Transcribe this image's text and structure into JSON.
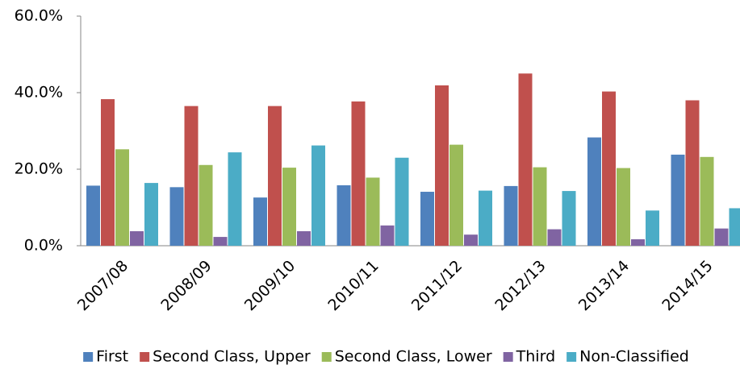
{
  "chart_data": {
    "type": "bar",
    "categories": [
      "2007/08",
      "2008/09",
      "2009/10",
      "2010/11",
      "2011/12",
      "2012/13",
      "2013/14",
      "2014/15"
    ],
    "series": [
      {
        "name": "First",
        "color": "#4f81bd",
        "values": [
          15.7,
          15.3,
          12.6,
          15.8,
          14.1,
          15.6,
          28.3,
          23.8
        ]
      },
      {
        "name": "Second Class, Upper",
        "color": "#c0504d",
        "values": [
          38.3,
          36.5,
          36.5,
          37.7,
          41.9,
          45.0,
          40.3,
          38.0
        ]
      },
      {
        "name": "Second Class, Lower",
        "color": "#9bbb59",
        "values": [
          25.2,
          21.1,
          20.4,
          17.8,
          26.4,
          20.5,
          20.3,
          23.2
        ]
      },
      {
        "name": "Third",
        "color": "#8064a2",
        "values": [
          3.8,
          2.3,
          3.8,
          5.3,
          2.9,
          4.3,
          1.7,
          4.5
        ]
      },
      {
        "name": "Non-Classified",
        "color": "#4bacc6",
        "values": [
          16.4,
          24.4,
          26.2,
          23.0,
          14.4,
          14.3,
          9.2,
          9.8
        ]
      }
    ],
    "ylim": [
      0,
      60
    ],
    "yticks": [
      {
        "value": 0,
        "label": "0.0%"
      },
      {
        "value": 20,
        "label": "20.0%"
      },
      {
        "value": 40,
        "label": "40.0%"
      },
      {
        "value": 60,
        "label": "60.0%"
      }
    ],
    "grid": false,
    "legend": "bottom"
  }
}
